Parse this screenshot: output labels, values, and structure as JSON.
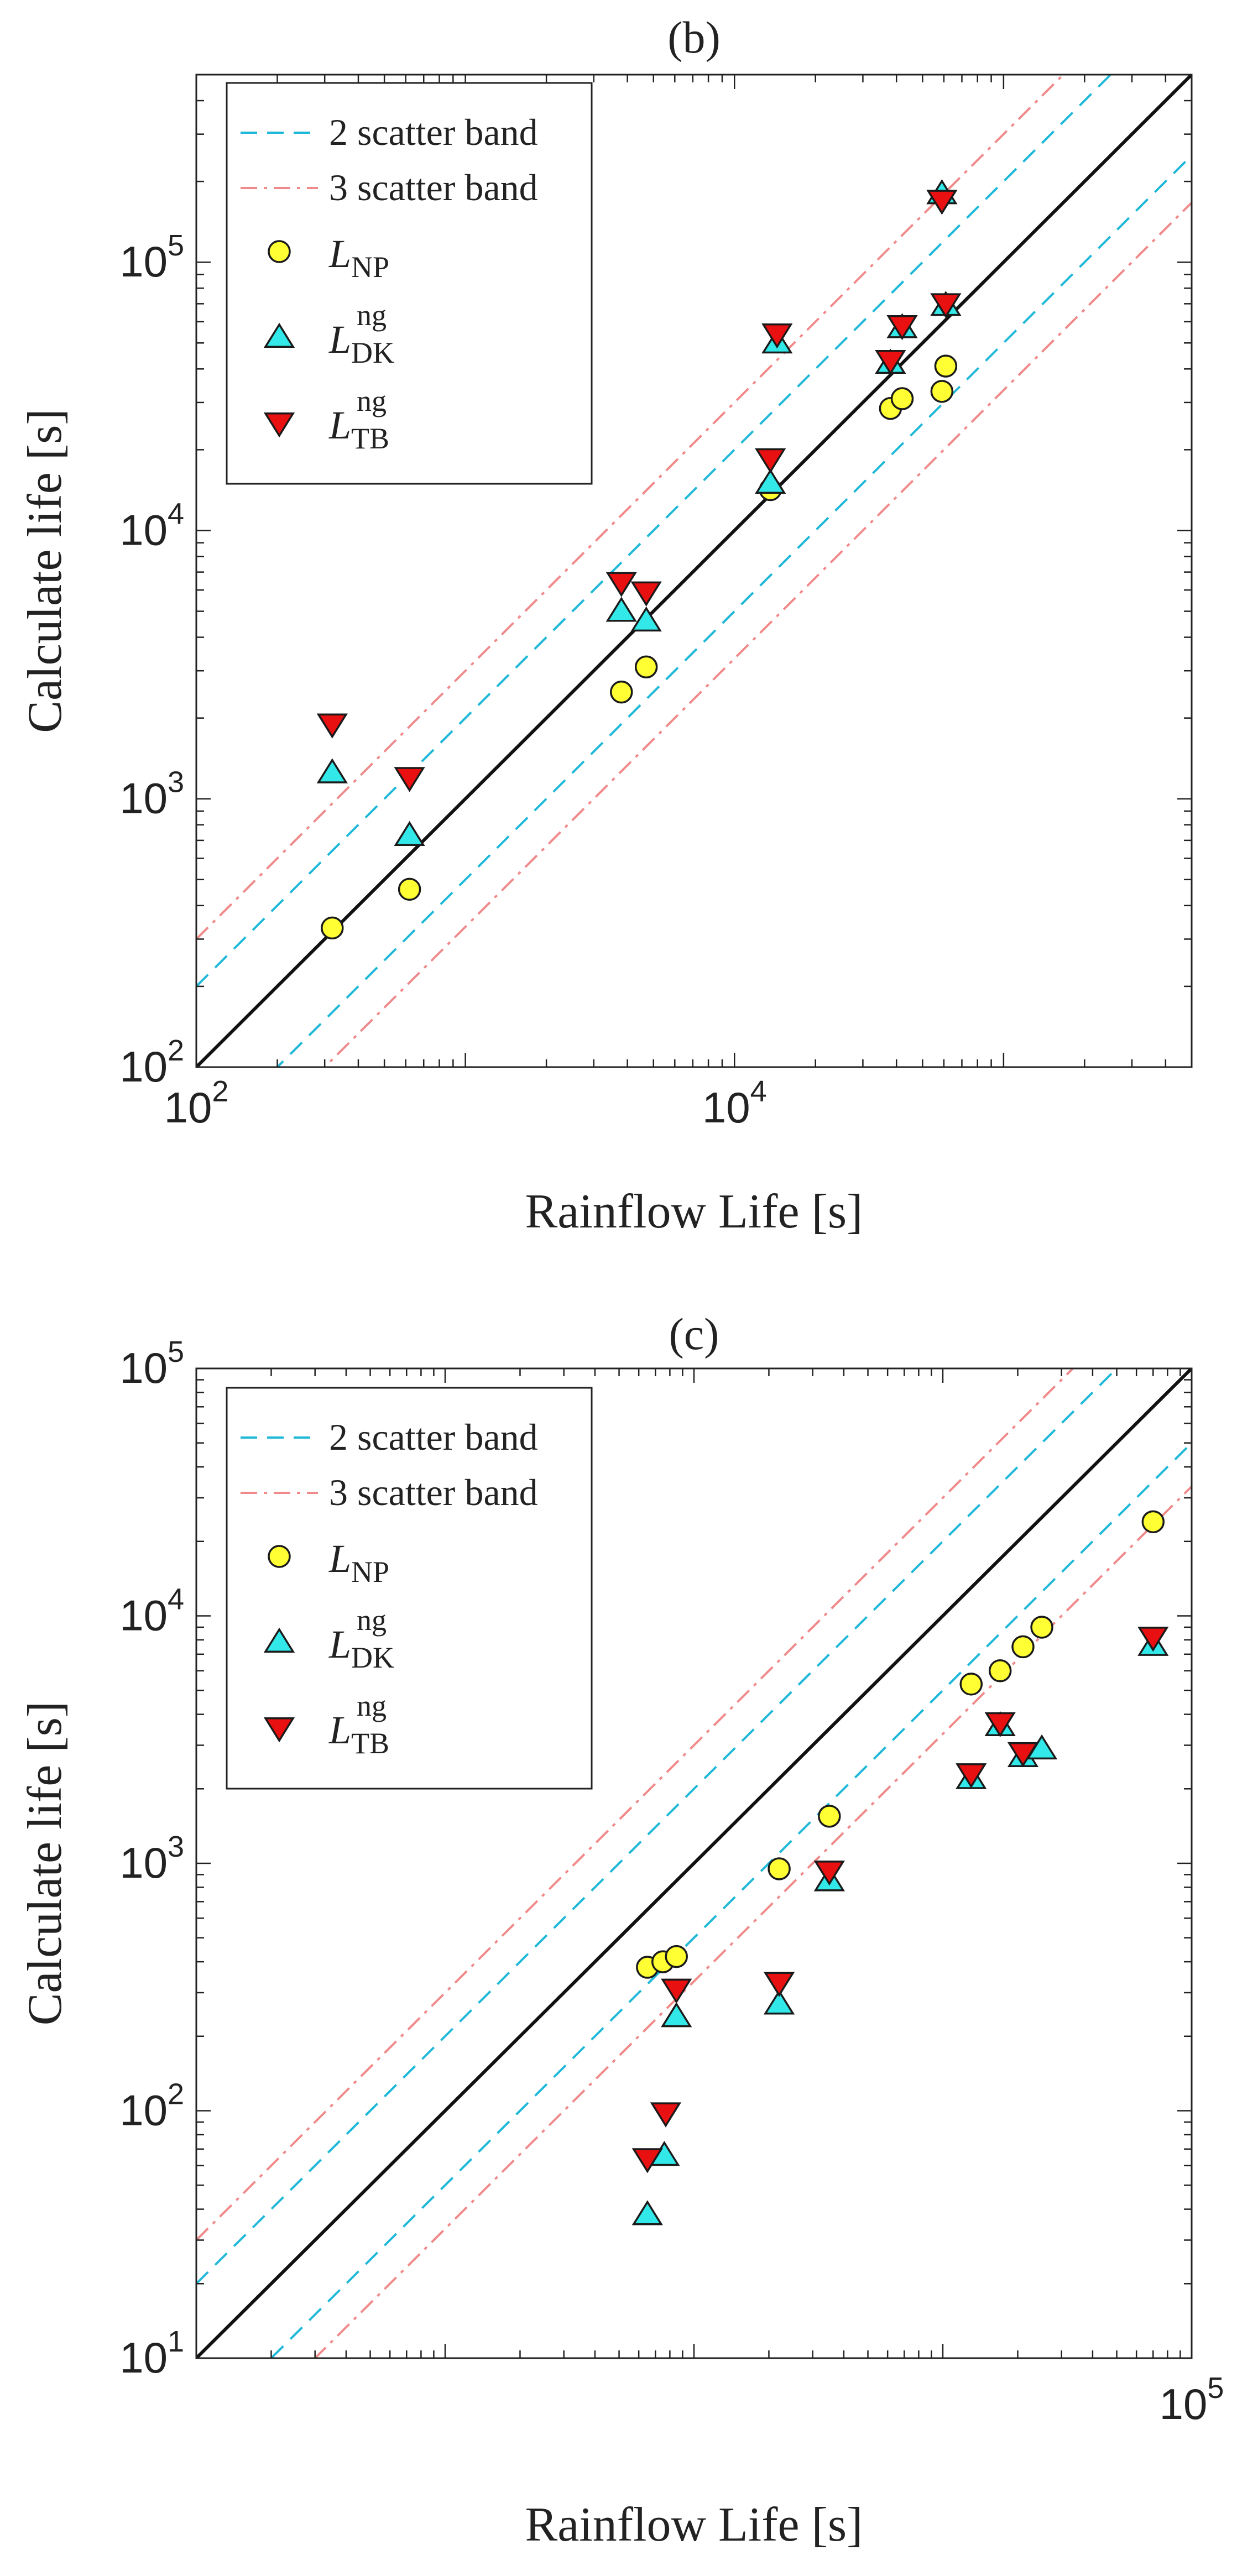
{
  "chart_data": [
    {
      "type": "scatter",
      "title": "(b)",
      "xlabel": "Rainflow Life [s]",
      "ylabel": "Calculate life [s]",
      "xscale": "log",
      "yscale": "log",
      "xlim": [
        100,
        500000
      ],
      "ylim": [
        100,
        500000
      ],
      "x_ticks": [
        {
          "value": 100,
          "base": "10",
          "exp": "2"
        },
        {
          "value": 10000,
          "base": "10",
          "exp": "4"
        }
      ],
      "y_ticks": [
        {
          "value": 100,
          "base": "10",
          "exp": "2"
        },
        {
          "value": 1000,
          "base": "10",
          "exp": "3"
        },
        {
          "value": 10000,
          "base": "10",
          "exp": "4"
        },
        {
          "value": 100000,
          "base": "10",
          "exp": "5"
        }
      ],
      "legend_position": "top-left",
      "legend": {
        "band2": "2 scatter band",
        "band3": "3 scatter band",
        "np": {
          "main": "L",
          "sub": "NP",
          "sup": ""
        },
        "dk": {
          "main": "L",
          "sub": "DK",
          "sup": "ng"
        },
        "tb": {
          "main": "L",
          "sub": "TB",
          "sup": "ng"
        }
      },
      "bands": [
        {
          "key": "band2",
          "factor": 2,
          "color": "#1fb8d8",
          "style": "dashed"
        },
        {
          "key": "band3",
          "factor": 3,
          "color": "#f08a8a",
          "style": "dashdot"
        }
      ],
      "series": [
        {
          "key": "np",
          "marker": "circle",
          "color": "#ffff33",
          "points": [
            [
              320,
              330
            ],
            [
              620,
              460
            ],
            [
              3800,
              2500
            ],
            [
              4700,
              3100
            ],
            [
              13600,
              14200
            ],
            [
              38000,
              28500
            ],
            [
              42000,
              31000
            ],
            [
              59000,
              33000
            ],
            [
              61000,
              41000
            ]
          ]
        },
        {
          "key": "dk",
          "marker": "triangle-up",
          "color": "#33e8e8",
          "points": [
            [
              320,
              1250
            ],
            [
              620,
              730
            ],
            [
              3800,
              5000
            ],
            [
              4700,
              4600
            ],
            [
              13600,
              15000
            ],
            [
              14400,
              50000
            ],
            [
              38000,
              42000
            ],
            [
              42000,
              57000
            ],
            [
              61000,
              69000
            ],
            [
              59000,
              180000
            ]
          ]
        },
        {
          "key": "tb",
          "marker": "triangle-down",
          "color": "#e81010",
          "points": [
            [
              320,
              1900
            ],
            [
              620,
              1200
            ],
            [
              3800,
              6400
            ],
            [
              4700,
              5900
            ],
            [
              13600,
              18500
            ],
            [
              14400,
              54000
            ],
            [
              38000,
              43000
            ],
            [
              42000,
              58000
            ],
            [
              61000,
              70000
            ],
            [
              59000,
              170000
            ]
          ]
        }
      ]
    },
    {
      "type": "scatter",
      "title": "(c)",
      "xlabel": "Rainflow Life [s]",
      "ylabel": "Calculate life [s]",
      "xscale": "log",
      "yscale": "log",
      "xlim": [
        10,
        100000
      ],
      "ylim": [
        10,
        100000
      ],
      "x_ticks": [
        {
          "value": 100000,
          "base": "10",
          "exp": "5"
        }
      ],
      "y_ticks": [
        {
          "value": 10,
          "base": "10",
          "exp": "1"
        },
        {
          "value": 100,
          "base": "10",
          "exp": "2"
        },
        {
          "value": 1000,
          "base": "10",
          "exp": "3"
        },
        {
          "value": 10000,
          "base": "10",
          "exp": "4"
        },
        {
          "value": 100000,
          "base": "10",
          "exp": "5"
        }
      ],
      "legend_position": "top-left",
      "legend": {
        "band2": "2 scatter band",
        "band3": "3 scatter band",
        "np": {
          "main": "L",
          "sub": "NP",
          "sup": ""
        },
        "dk": {
          "main": "L",
          "sub": "DK",
          "sup": "ng"
        },
        "tb": {
          "main": "L",
          "sub": "TB",
          "sup": "ng"
        }
      },
      "bands": [
        {
          "key": "band2",
          "factor": 2,
          "color": "#1fb8d8",
          "style": "dashed"
        },
        {
          "key": "band3",
          "factor": 3,
          "color": "#f08a8a",
          "style": "dashdot"
        }
      ],
      "series": [
        {
          "key": "np",
          "marker": "circle",
          "color": "#ffff33",
          "points": [
            [
              650,
              380
            ],
            [
              750,
              400
            ],
            [
              850,
              420
            ],
            [
              2200,
              950
            ],
            [
              3500,
              1550
            ],
            [
              13000,
              5300
            ],
            [
              17000,
              6000
            ],
            [
              21000,
              7500
            ],
            [
              25000,
              9000
            ],
            [
              70000,
              24000
            ]
          ]
        },
        {
          "key": "dk",
          "marker": "triangle-up",
          "color": "#33e8e8",
          "points": [
            [
              650,
              38
            ],
            [
              760,
              66
            ],
            [
              850,
              240
            ],
            [
              2200,
              270
            ],
            [
              3500,
              850
            ],
            [
              13000,
              2200
            ],
            [
              17000,
              3600
            ],
            [
              21000,
              2700
            ],
            [
              25000,
              2900
            ],
            [
              70000,
              7600
            ]
          ]
        },
        {
          "key": "tb",
          "marker": "triangle-down",
          "color": "#e81010",
          "points": [
            [
              650,
              64
            ],
            [
              770,
              98
            ],
            [
              850,
              310
            ],
            [
              2200,
              330
            ],
            [
              3500,
              930
            ],
            [
              13000,
              2300
            ],
            [
              17000,
              3700
            ],
            [
              21000,
              2800
            ],
            [
              70000,
              8200
            ]
          ]
        }
      ]
    }
  ]
}
